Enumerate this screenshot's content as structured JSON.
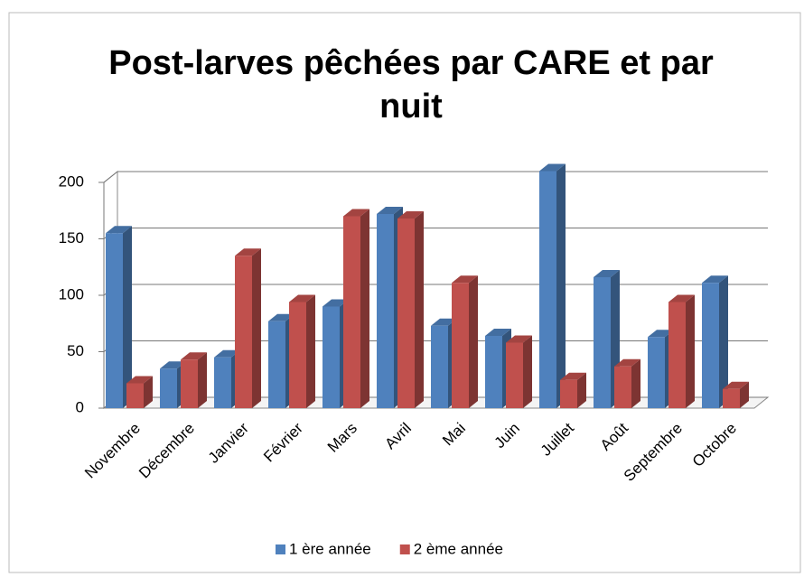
{
  "chart_data": {
    "type": "bar3d",
    "title": "Post-larves pêchées par CARE et par nuit",
    "categories": [
      "Novembre",
      "Décembre",
      "Janvier",
      "Février",
      "Mars",
      "Avril",
      "Mai",
      "Juin",
      "Juillet",
      "Août",
      "Septembre",
      "Octobre"
    ],
    "series": [
      {
        "name": "1 ère année",
        "color": "#4f81bd",
        "values": [
          155,
          35,
          45,
          77,
          90,
          172,
          73,
          64,
          210,
          116,
          63,
          111
        ]
      },
      {
        "name": "2 ème année",
        "color": "#c0504d",
        "values": [
          22,
          43,
          135,
          94,
          170,
          168,
          111,
          58,
          25,
          37,
          94,
          17
        ]
      }
    ],
    "ylim": [
      0,
      200
    ],
    "yticks": [
      0,
      50,
      100,
      150,
      200
    ],
    "grid": true,
    "legend": "bottom"
  }
}
